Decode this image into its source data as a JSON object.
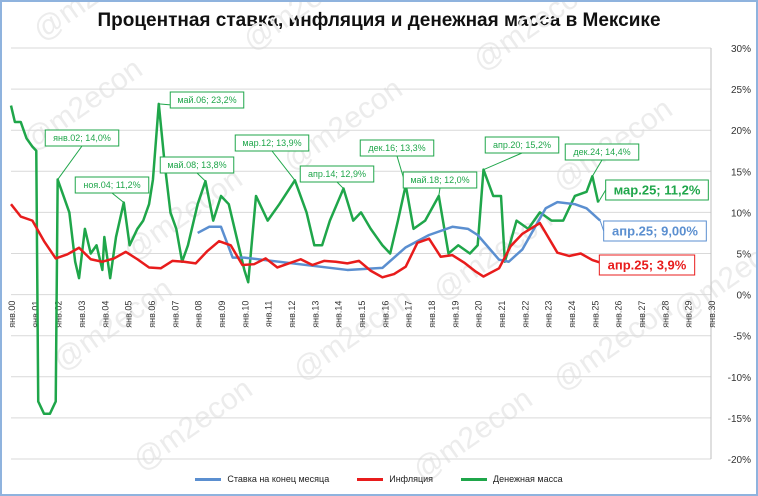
{
  "chart_data": {
    "type": "line",
    "title": "Процентная ставка, инфляция и денежная масса в Мексике",
    "watermark": "@m2econ",
    "xlim": [
      "2000-01",
      "2030-01"
    ],
    "ylim": [
      -20,
      30
    ],
    "y_ticks": [
      "30%",
      "25%",
      "20%",
      "15%",
      "10%",
      "5%",
      "0%",
      "-5%",
      "-10%",
      "-15%",
      "-20%"
    ],
    "x_ticks": [
      "янв.00",
      "янв.01",
      "янв.02",
      "янв.03",
      "янв.04",
      "янв.05",
      "янв.06",
      "янв.07",
      "янв.08",
      "янв.09",
      "янв.10",
      "янв.11",
      "янв.12",
      "янв.13",
      "янв.14",
      "янв.15",
      "янв.16",
      "янв.17",
      "янв.18",
      "янв.19",
      "янв.20",
      "янв.21",
      "янв.22",
      "янв.23",
      "янв.24",
      "янв.25",
      "янв.26",
      "янв.27",
      "янв.28",
      "янв.29",
      "янв.30"
    ],
    "grid": true,
    "legend": "bottom",
    "y_axis_side": "right",
    "series": [
      {
        "name": "Ставка на конец месяца",
        "color": "#5b8fd0",
        "points": [
          [
            "2008-01",
            7.5
          ],
          [
            "2008-07",
            8.25
          ],
          [
            "2009-01",
            8.25
          ],
          [
            "2009-07",
            4.5
          ],
          [
            "2010-01",
            4.5
          ],
          [
            "2014-06",
            3
          ],
          [
            "2015-12",
            3.25
          ],
          [
            "2016-12",
            5.75
          ],
          [
            "2017-12",
            7.25
          ],
          [
            "2018-12",
            8.25
          ],
          [
            "2019-08",
            8
          ],
          [
            "2020-01",
            7.25
          ],
          [
            "2020-12",
            4.25
          ],
          [
            "2021-05",
            4
          ],
          [
            "2021-12",
            5.5
          ],
          [
            "2022-12",
            10.5
          ],
          [
            "2023-06",
            11.25
          ],
          [
            "2024-03",
            11
          ],
          [
            "2024-09",
            10.5
          ],
          [
            "2025-04",
            9.0
          ]
        ]
      },
      {
        "name": "Инфляция",
        "color": "#e81c1c",
        "points": [
          [
            "2000-01",
            11
          ],
          [
            "2000-06",
            9.5
          ],
          [
            "2000-12",
            9
          ],
          [
            "2001-06",
            6.5
          ],
          [
            "2001-12",
            4.4
          ],
          [
            "2002-06",
            4.9
          ],
          [
            "2002-12",
            5.7
          ],
          [
            "2003-06",
            4.3
          ],
          [
            "2003-12",
            4
          ],
          [
            "2004-06",
            4.4
          ],
          [
            "2004-12",
            5.2
          ],
          [
            "2005-06",
            4.3
          ],
          [
            "2005-12",
            3.3
          ],
          [
            "2006-06",
            3.2
          ],
          [
            "2006-12",
            4.1
          ],
          [
            "2007-06",
            4
          ],
          [
            "2007-12",
            3.8
          ],
          [
            "2008-06",
            5.3
          ],
          [
            "2008-12",
            6.5
          ],
          [
            "2009-06",
            6
          ],
          [
            "2009-12",
            3.6
          ],
          [
            "2010-06",
            3.7
          ],
          [
            "2010-12",
            4.4
          ],
          [
            "2011-06",
            3.3
          ],
          [
            "2011-12",
            3.8
          ],
          [
            "2012-06",
            4.3
          ],
          [
            "2012-12",
            3.6
          ],
          [
            "2013-06",
            4.1
          ],
          [
            "2013-12",
            4
          ],
          [
            "2014-06",
            3.8
          ],
          [
            "2014-12",
            4.1
          ],
          [
            "2015-06",
            2.9
          ],
          [
            "2015-12",
            2.1
          ],
          [
            "2016-06",
            2.5
          ],
          [
            "2016-12",
            3.4
          ],
          [
            "2017-06",
            6.3
          ],
          [
            "2017-12",
            6.8
          ],
          [
            "2018-06",
            4.6
          ],
          [
            "2018-12",
            4.8
          ],
          [
            "2019-06",
            3.9
          ],
          [
            "2019-12",
            2.8
          ],
          [
            "2020-04",
            2.2
          ],
          [
            "2020-12",
            3.2
          ],
          [
            "2021-06",
            5.9
          ],
          [
            "2021-12",
            7.4
          ],
          [
            "2022-09",
            8.7
          ],
          [
            "2023-06",
            5.1
          ],
          [
            "2023-12",
            4.7
          ],
          [
            "2024-06",
            5.0
          ],
          [
            "2024-12",
            4.2
          ],
          [
            "2025-04",
            3.9
          ]
        ]
      },
      {
        "name": "Денежная масса",
        "color": "#1fa64a",
        "points": [
          [
            "2000-01",
            23
          ],
          [
            "2000-03",
            21
          ],
          [
            "2000-06",
            21
          ],
          [
            "2000-09",
            19
          ],
          [
            "2000-12",
            18
          ],
          [
            "2001-02",
            17.5
          ],
          [
            "2001-03",
            -13
          ],
          [
            "2001-06",
            -14.5
          ],
          [
            "2001-09",
            -14.5
          ],
          [
            "2001-12",
            -13
          ],
          [
            "2002-01",
            14.0
          ],
          [
            "2002-04",
            12
          ],
          [
            "2002-07",
            10
          ],
          [
            "2002-10",
            4
          ],
          [
            "2002-12",
            2
          ],
          [
            "2003-03",
            8
          ],
          [
            "2003-06",
            5
          ],
          [
            "2003-09",
            6
          ],
          [
            "2003-12",
            3
          ],
          [
            "2004-01",
            7
          ],
          [
            "2004-04",
            2
          ],
          [
            "2004-07",
            7
          ],
          [
            "2004-11",
            11.2
          ],
          [
            "2005-02",
            6
          ],
          [
            "2005-06",
            8
          ],
          [
            "2005-09",
            9
          ],
          [
            "2005-12",
            11
          ],
          [
            "2006-02",
            14
          ],
          [
            "2006-05",
            23.2
          ],
          [
            "2006-08",
            16
          ],
          [
            "2006-11",
            10
          ],
          [
            "2007-02",
            8
          ],
          [
            "2007-05",
            4
          ],
          [
            "2007-08",
            6
          ],
          [
            "2008-01",
            11
          ],
          [
            "2008-05",
            13.8
          ],
          [
            "2008-09",
            9
          ],
          [
            "2009-01",
            12
          ],
          [
            "2009-05",
            11
          ],
          [
            "2009-09",
            7
          ],
          [
            "2010-01",
            3
          ],
          [
            "2010-03",
            1.5
          ],
          [
            "2010-07",
            12
          ],
          [
            "2011-01",
            9
          ],
          [
            "2011-07",
            11
          ],
          [
            "2012-03",
            13.9
          ],
          [
            "2012-09",
            10
          ],
          [
            "2013-01",
            6
          ],
          [
            "2013-05",
            6
          ],
          [
            "2013-09",
            9
          ],
          [
            "2014-04",
            12.9
          ],
          [
            "2014-09",
            9
          ],
          [
            "2015-01",
            10
          ],
          [
            "2015-06",
            8
          ],
          [
            "2015-12",
            6
          ],
          [
            "2016-04",
            5
          ],
          [
            "2016-08",
            9
          ],
          [
            "2016-12",
            13.3
          ],
          [
            "2017-04",
            8
          ],
          [
            "2017-10",
            9
          ],
          [
            "2018-05",
            12.0
          ],
          [
            "2018-10",
            5
          ],
          [
            "2019-03",
            6
          ],
          [
            "2019-09",
            5
          ],
          [
            "2020-01",
            6
          ],
          [
            "2020-04",
            15.2
          ],
          [
            "2020-09",
            12
          ],
          [
            "2021-01",
            12
          ],
          [
            "2021-03",
            4
          ],
          [
            "2021-09",
            9
          ],
          [
            "2022-03",
            8
          ],
          [
            "2022-09",
            10
          ],
          [
            "2023-03",
            9
          ],
          [
            "2023-09",
            9
          ],
          [
            "2024-03",
            12
          ],
          [
            "2024-09",
            12.5
          ],
          [
            "2024-12",
            14.4
          ],
          [
            "2025-03",
            11.2
          ]
        ]
      }
    ],
    "annotations": [
      {
        "series": 2,
        "date": "2002-01",
        "value": 14.0,
        "label": "янв.02; 14,0%"
      },
      {
        "series": 2,
        "date": "2004-11",
        "value": 11.2,
        "label": "ноя.04; 11,2%"
      },
      {
        "series": 2,
        "date": "2006-05",
        "value": 23.2,
        "label": "май.06; 23,2%"
      },
      {
        "series": 2,
        "date": "2008-05",
        "value": 13.8,
        "label": "май.08; 13,8%"
      },
      {
        "series": 2,
        "date": "2012-03",
        "value": 13.9,
        "label": "мар.12; 13,9%"
      },
      {
        "series": 2,
        "date": "2014-04",
        "value": 12.9,
        "label": "апр.14; 12,9%"
      },
      {
        "series": 2,
        "date": "2016-12",
        "value": 13.3,
        "label": "дек.16; 13,3%"
      },
      {
        "series": 2,
        "date": "2018-05",
        "value": 12.0,
        "label": "май.18; 12,0%"
      },
      {
        "series": 2,
        "date": "2020-04",
        "value": 15.2,
        "label": "апр.20; 15,2%"
      },
      {
        "series": 2,
        "date": "2024-12",
        "value": 14.4,
        "label": "дек.24; 14,4%"
      },
      {
        "series": 2,
        "date": "2025-03",
        "value": 11.2,
        "label": "мар.25; 11,2%"
      },
      {
        "series": 0,
        "date": "2025-04",
        "value": 9.0,
        "label": "апр.25; 9,00%"
      },
      {
        "series": 1,
        "date": "2025-04",
        "value": 3.9,
        "label": "апр.25; 3,9%"
      }
    ]
  }
}
